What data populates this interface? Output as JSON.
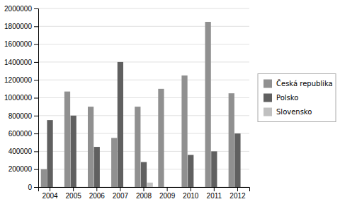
{
  "chart_data": {
    "type": "bar",
    "categories": [
      "2004",
      "2005",
      "2006",
      "2007",
      "2008",
      "2009",
      "2010",
      "2011",
      "2012"
    ],
    "series": [
      {
        "name": "Česká republika",
        "color": "#909090",
        "values": [
          200000,
          1070000,
          900000,
          550000,
          900000,
          1100000,
          1250000,
          1850000,
          1050000
        ]
      },
      {
        "name": "Polsko",
        "color": "#606060",
        "values": [
          750000,
          800000,
          450000,
          1400000,
          280000,
          0,
          360000,
          400000,
          600000
        ]
      },
      {
        "name": "Slovensko",
        "color": "#c0c0c0",
        "values": [
          0,
          0,
          0,
          0,
          50000,
          0,
          0,
          0,
          0
        ]
      }
    ],
    "ylim": [
      0,
      2000000
    ],
    "yticks": [
      0,
      200000,
      400000,
      600000,
      800000,
      1000000,
      1200000,
      1400000,
      1600000,
      1800000,
      2000000
    ],
    "grid": true,
    "legend": "right"
  }
}
